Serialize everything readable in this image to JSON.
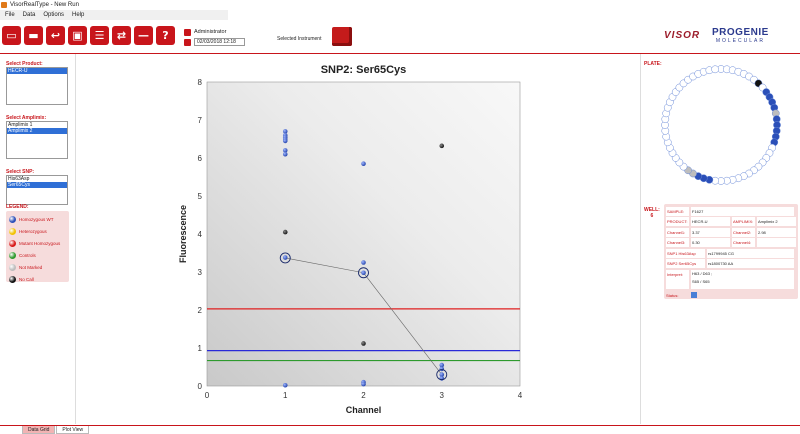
{
  "window": {
    "title": "VisorRealType - New Run"
  },
  "menu": [
    "File",
    "Data",
    "Options",
    "Help"
  ],
  "toolbar": [
    {
      "name": "new-run-button",
      "glyph": "▭"
    },
    {
      "name": "open-folder-button",
      "glyph": "▬"
    },
    {
      "name": "import-button",
      "glyph": "↩"
    },
    {
      "name": "save-button",
      "glyph": "▣"
    },
    {
      "name": "report-button",
      "glyph": "☰"
    },
    {
      "name": "refresh-button",
      "glyph": "⇄"
    },
    {
      "name": "remove-button",
      "glyph": "—"
    },
    {
      "name": "help-button",
      "glyph": "?"
    }
  ],
  "user": {
    "name": "Administrator",
    "date": "02/03/2018 12:18"
  },
  "instrument": {
    "label": "Selected Instrument"
  },
  "logos": {
    "left": "VISOR",
    "right": "PROGENIE",
    "right_sub": "MOLECULAR"
  },
  "product": {
    "label": "Select Product:",
    "items": [
      "HECR-U"
    ],
    "selected": 0
  },
  "amplimix": {
    "label": "Select Amplimix:",
    "items": [
      "Amplimix 1",
      "Amplimix 2"
    ],
    "selected": 1
  },
  "snp": {
    "label": "Select SNP:",
    "items": [
      "His63Asp",
      "Ser65Cys"
    ],
    "selected": 1
  },
  "legend": {
    "label": "LEGEND:",
    "items": [
      {
        "label": "Homozygous WT",
        "color": "#2b4fb8"
      },
      {
        "label": "Heterozygous",
        "color": "#f2c200"
      },
      {
        "label": "Mutant Homozygous",
        "color": "#d81818"
      },
      {
        "label": "Controls",
        "color": "#2e9a2e"
      },
      {
        "label": "Not Marked",
        "color": "#bdbdbd"
      },
      {
        "label": "No Call",
        "color": "#111111"
      }
    ]
  },
  "plate": {
    "label": "PLATE:",
    "wells": [
      "w",
      "w",
      "w",
      "w",
      "w",
      "w",
      "w",
      "k",
      "w",
      "b",
      "b",
      "b",
      "b",
      "g",
      "b",
      "b",
      "b",
      "b",
      "b",
      "w",
      "w",
      "w",
      "w",
      "w",
      "w",
      "w",
      "w",
      "w",
      "w",
      "w",
      "w",
      "w",
      "b",
      "b",
      "b",
      "g",
      "g",
      "w",
      "w",
      "w",
      "w",
      "w",
      "w",
      "w",
      "w",
      "w",
      "w",
      "w",
      "w",
      "w",
      "w",
      "w",
      "w",
      "w",
      "w",
      "w",
      "w",
      "w",
      "w",
      "w"
    ]
  },
  "well": {
    "label": "WELL:",
    "number": "6"
  },
  "info": {
    "sample_label": "SAMPLE:",
    "sample": "F1627",
    "product_label": "PRODUCT:",
    "product": "HECR-U",
    "amplimix_label": "AMPLIMIX:",
    "amplimix": "Amplimix 2",
    "ch1_label": "Channel1:",
    "ch1": "3.37",
    "ch2_label": "Channel2:",
    "ch2": "2.98",
    "ch3_label": "Channel3:",
    "ch3": "0.30",
    "ch4_label": "Channel4:",
    "ch4": "",
    "snp1_label": "SNP1 His63Asp",
    "snp1": "rs1799945 CG",
    "snp2_label": "SNP2 Ser65Cys",
    "snp2": "rs1800730 AA",
    "interp_label": "Interpret:",
    "interp1": "H63 / D63 ;",
    "interp2": "S65 / S65",
    "status_label": "Status:"
  },
  "tabs": [
    {
      "label": "Data Grid",
      "active": true
    },
    {
      "label": "Plot View",
      "active": false
    }
  ],
  "chart_data": {
    "type": "scatter",
    "title": "SNP2: Ser65Cys",
    "xlabel": "Channel",
    "ylabel": "Fluorescence",
    "xlim": [
      0,
      4
    ],
    "ylim": [
      0,
      8
    ],
    "xticks": [
      "0",
      "1",
      "2",
      "3",
      "4"
    ],
    "yticks": [
      "0",
      "1",
      "2",
      "3",
      "4",
      "5",
      "6",
      "7",
      "8"
    ],
    "thresholds": [
      {
        "y": 2.03,
        "color": "#e02020"
      },
      {
        "y": 0.93,
        "color": "#2a2ad8"
      },
      {
        "y": 0.67,
        "color": "#2e9a2e"
      }
    ],
    "series": [
      {
        "color": "#2b4fb8",
        "points": [
          [
            1,
            6.7
          ],
          [
            1,
            6.6
          ],
          [
            1,
            6.55
          ],
          [
            1,
            6.5
          ],
          [
            1,
            6.45
          ],
          [
            1,
            6.2
          ],
          [
            1,
            6.1
          ],
          [
            1,
            3.38
          ],
          [
            1,
            0.02
          ],
          [
            2,
            5.85
          ],
          [
            2,
            3.25
          ],
          [
            2,
            2.98
          ],
          [
            2,
            0.1
          ],
          [
            2,
            0.05
          ],
          [
            3,
            0.55
          ],
          [
            3,
            0.45
          ],
          [
            3,
            0.3
          ],
          [
            3,
            0.2
          ]
        ]
      },
      {
        "color": "#222222",
        "points": [
          [
            1,
            4.05
          ],
          [
            2,
            1.12
          ],
          [
            3,
            6.32
          ]
        ]
      }
    ],
    "highlighted_line": [
      [
        1,
        3.37
      ],
      [
        2,
        2.98
      ],
      [
        3,
        0.3
      ]
    ]
  }
}
